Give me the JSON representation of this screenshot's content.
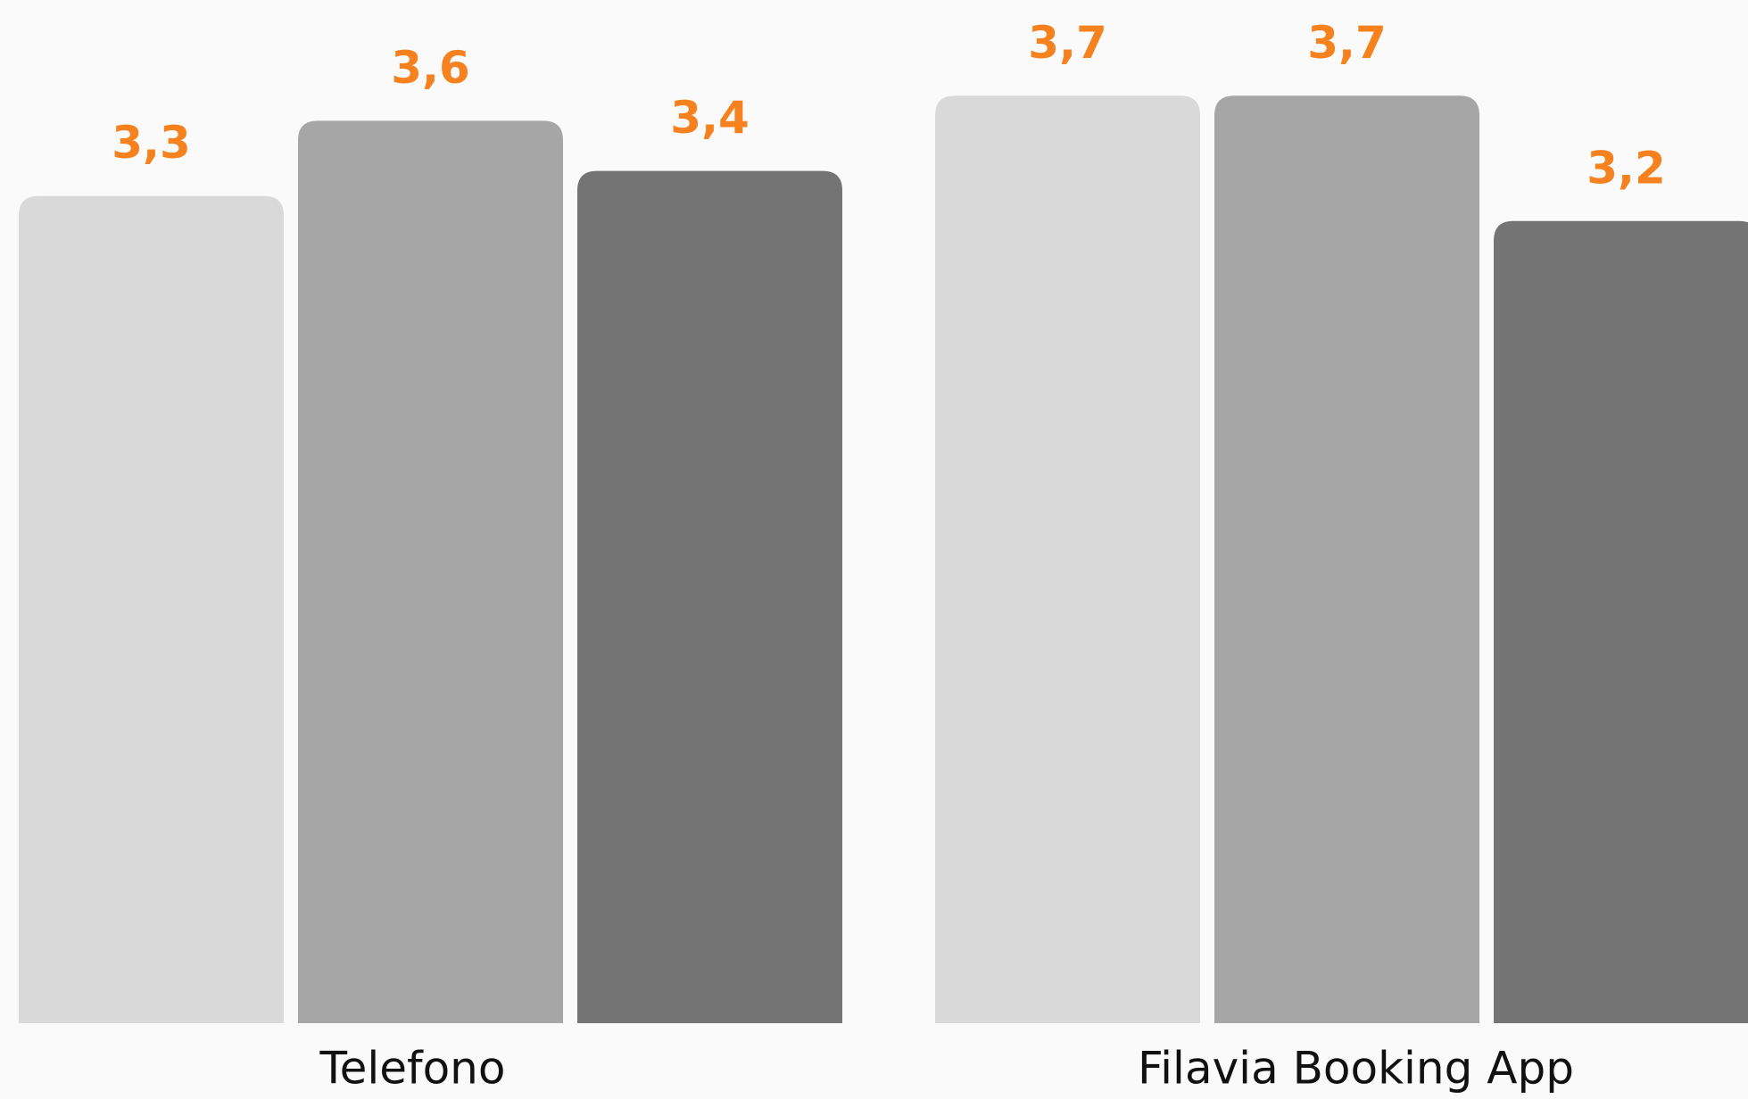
{
  "chart_data": {
    "type": "bar",
    "categories": [
      "Telefono",
      "Filavia Booking App"
    ],
    "series": [
      {
        "color": "#d9d9d9",
        "values": [
          3.3,
          3.7
        ],
        "value_labels": [
          "3,3",
          "3,7"
        ]
      },
      {
        "color": "#a6a6a6",
        "values": [
          3.6,
          3.7
        ],
        "value_labels": [
          "3,6",
          "3,7"
        ]
      },
      {
        "color": "#747474",
        "values": [
          3.4,
          3.2
        ],
        "value_labels": [
          "3,4",
          "3,2"
        ]
      }
    ],
    "ylim": [
      0,
      4
    ]
  }
}
